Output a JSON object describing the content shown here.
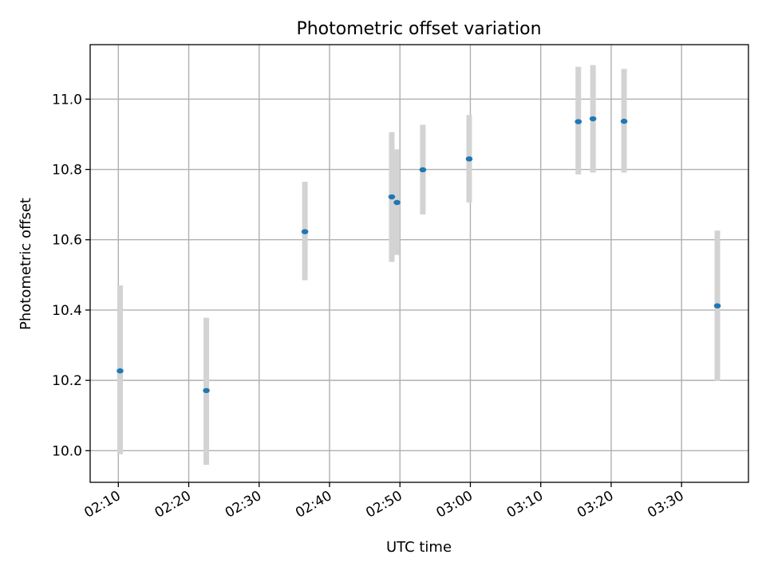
{
  "chart_data": {
    "type": "scatter",
    "title": "Photometric offset variation",
    "xlabel": "UTC time",
    "ylabel": "Photometric offset",
    "x_tick_labels": [
      "02:10",
      "02:20",
      "02:30",
      "02:40",
      "02:50",
      "03:00",
      "03:10",
      "03:20",
      "03:30"
    ],
    "y_tick_labels": [
      "10.0",
      "10.2",
      "10.4",
      "10.6",
      "10.8",
      "11.0"
    ],
    "xlim": [
      "02:06",
      "03:39:30"
    ],
    "ylim": [
      9.91,
      11.155
    ],
    "grid": true,
    "colors": {
      "marker": "#1f77b4",
      "errorbar": "#d3d3d3"
    },
    "points": [
      {
        "time": "02:10:15",
        "y": 10.227,
        "yerr_low": 9.99,
        "yerr_high": 10.47
      },
      {
        "time": "02:22:30",
        "y": 10.171,
        "yerr_low": 9.96,
        "yerr_high": 10.378
      },
      {
        "time": "02:36:30",
        "y": 10.623,
        "yerr_low": 10.485,
        "yerr_high": 10.765
      },
      {
        "time": "02:48:50",
        "y": 10.722,
        "yerr_low": 10.537,
        "yerr_high": 10.906
      },
      {
        "time": "02:49:35",
        "y": 10.706,
        "yerr_low": 10.557,
        "yerr_high": 10.857
      },
      {
        "time": "02:53:15",
        "y": 10.799,
        "yerr_low": 10.672,
        "yerr_high": 10.927
      },
      {
        "time": "02:59:50",
        "y": 10.83,
        "yerr_low": 10.706,
        "yerr_high": 10.955
      },
      {
        "time": "03:15:20",
        "y": 10.936,
        "yerr_low": 10.786,
        "yerr_high": 11.092
      },
      {
        "time": "03:17:25",
        "y": 10.944,
        "yerr_low": 10.791,
        "yerr_high": 11.097
      },
      {
        "time": "03:21:50",
        "y": 10.937,
        "yerr_low": 10.791,
        "yerr_high": 11.086
      },
      {
        "time": "03:35:05",
        "y": 10.412,
        "yerr_low": 10.198,
        "yerr_high": 10.626
      }
    ]
  }
}
